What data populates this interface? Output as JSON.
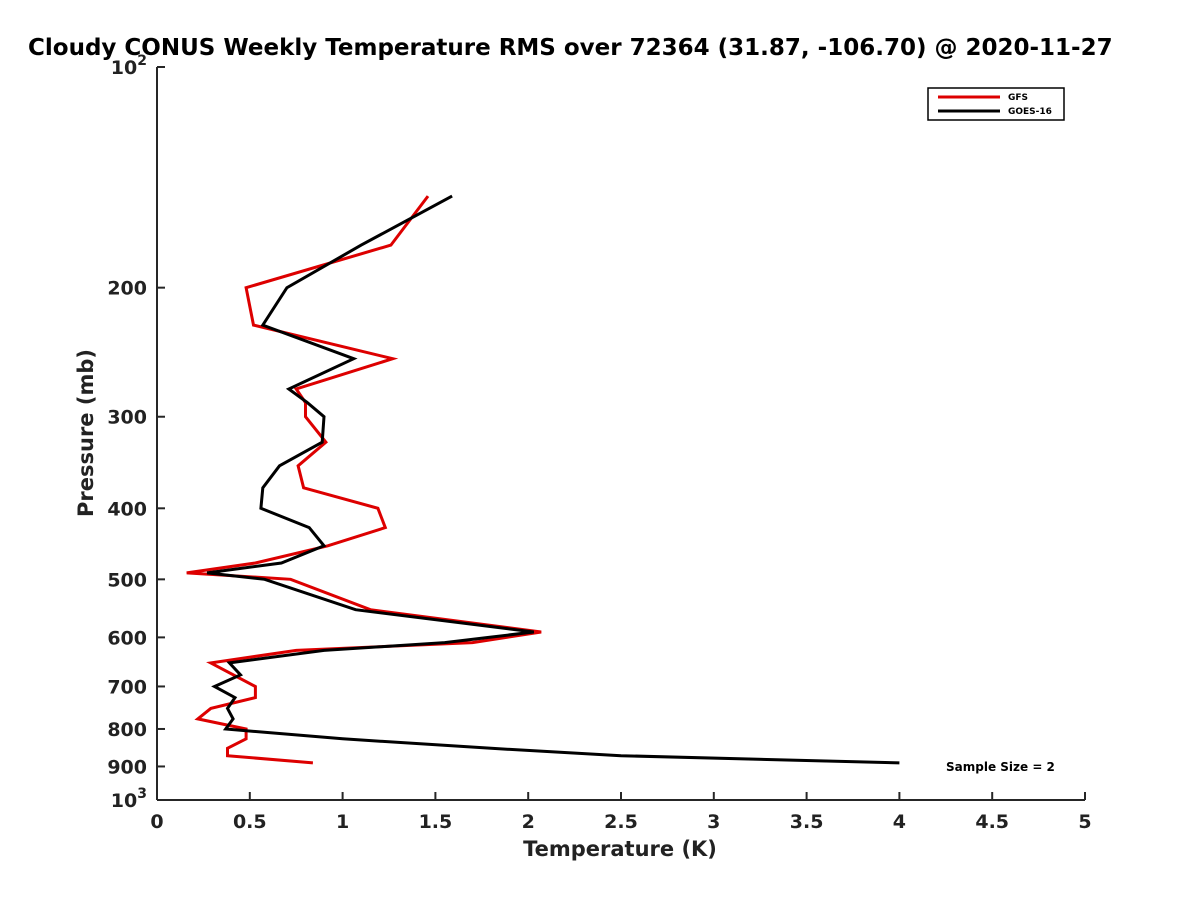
{
  "chart_data": {
    "type": "line",
    "title": "Cloudy CONUS Weekly Temperature RMS over 72364 (31.87, -106.70) @ 2020-11-27",
    "xlabel": "Temperature (K)",
    "ylabel": "Pressure (mb)",
    "xlim": [
      0,
      5
    ],
    "ylim": [
      1000,
      100
    ],
    "y_scale": "log",
    "y_reversed": true,
    "grid": false,
    "legend_position": "top-right",
    "x_ticks": [
      "0",
      "0.5",
      "1",
      "1.5",
      "2",
      "2.5",
      "3",
      "3.5",
      "4",
      "4.5",
      "5"
    ],
    "y_ticks": [
      {
        "value": 100,
        "base": "10",
        "exp": "2"
      },
      {
        "value": 200,
        "label": "200"
      },
      {
        "value": 300,
        "label": "300"
      },
      {
        "value": 400,
        "label": "400"
      },
      {
        "value": 500,
        "label": "500"
      },
      {
        "value": 600,
        "label": "600"
      },
      {
        "value": 700,
        "label": "700"
      },
      {
        "value": 800,
        "label": "800"
      },
      {
        "value": 900,
        "label": "900"
      },
      {
        "value": 1000,
        "base": "10",
        "exp": "3"
      }
    ],
    "annotation": "Sample Size = 2",
    "series": [
      {
        "name": "GFS",
        "color": "#dd0000",
        "points": [
          [
            1.46,
            150
          ],
          [
            1.26,
            175
          ],
          [
            0.48,
            200
          ],
          [
            0.52,
            225
          ],
          [
            1.27,
            250
          ],
          [
            0.75,
            275
          ],
          [
            0.8,
            287
          ],
          [
            0.8,
            300
          ],
          [
            0.91,
            325
          ],
          [
            0.76,
            350
          ],
          [
            0.79,
            375
          ],
          [
            1.19,
            400
          ],
          [
            1.23,
            425
          ],
          [
            0.92,
            450
          ],
          [
            0.53,
            475
          ],
          [
            0.16,
            490
          ],
          [
            0.72,
            500
          ],
          [
            1.15,
            550
          ],
          [
            2.07,
            590
          ],
          [
            1.7,
            610
          ],
          [
            0.75,
            625
          ],
          [
            0.29,
            650
          ],
          [
            0.53,
            700
          ],
          [
            0.53,
            725
          ],
          [
            0.29,
            750
          ],
          [
            0.22,
            775
          ],
          [
            0.48,
            800
          ],
          [
            0.48,
            825
          ],
          [
            0.38,
            850
          ],
          [
            0.38,
            870
          ],
          [
            0.84,
            890
          ]
        ]
      },
      {
        "name": "GOES-16",
        "color": "#000000",
        "points": [
          [
            1.59,
            150
          ],
          [
            1.1,
            175
          ],
          [
            0.7,
            200
          ],
          [
            0.57,
            225
          ],
          [
            1.06,
            250
          ],
          [
            0.71,
            275
          ],
          [
            0.81,
            287
          ],
          [
            0.9,
            300
          ],
          [
            0.89,
            325
          ],
          [
            0.66,
            350
          ],
          [
            0.57,
            375
          ],
          [
            0.56,
            400
          ],
          [
            0.82,
            425
          ],
          [
            0.9,
            450
          ],
          [
            0.67,
            475
          ],
          [
            0.27,
            490
          ],
          [
            0.58,
            500
          ],
          [
            1.07,
            550
          ],
          [
            2.03,
            590
          ],
          [
            1.55,
            610
          ],
          [
            0.9,
            625
          ],
          [
            0.39,
            650
          ],
          [
            0.45,
            675
          ],
          [
            0.31,
            700
          ],
          [
            0.42,
            725
          ],
          [
            0.38,
            750
          ],
          [
            0.41,
            775
          ],
          [
            0.37,
            800
          ],
          [
            1.0,
            825
          ],
          [
            1.8,
            850
          ],
          [
            2.5,
            870
          ],
          [
            4.0,
            890
          ]
        ]
      }
    ]
  }
}
